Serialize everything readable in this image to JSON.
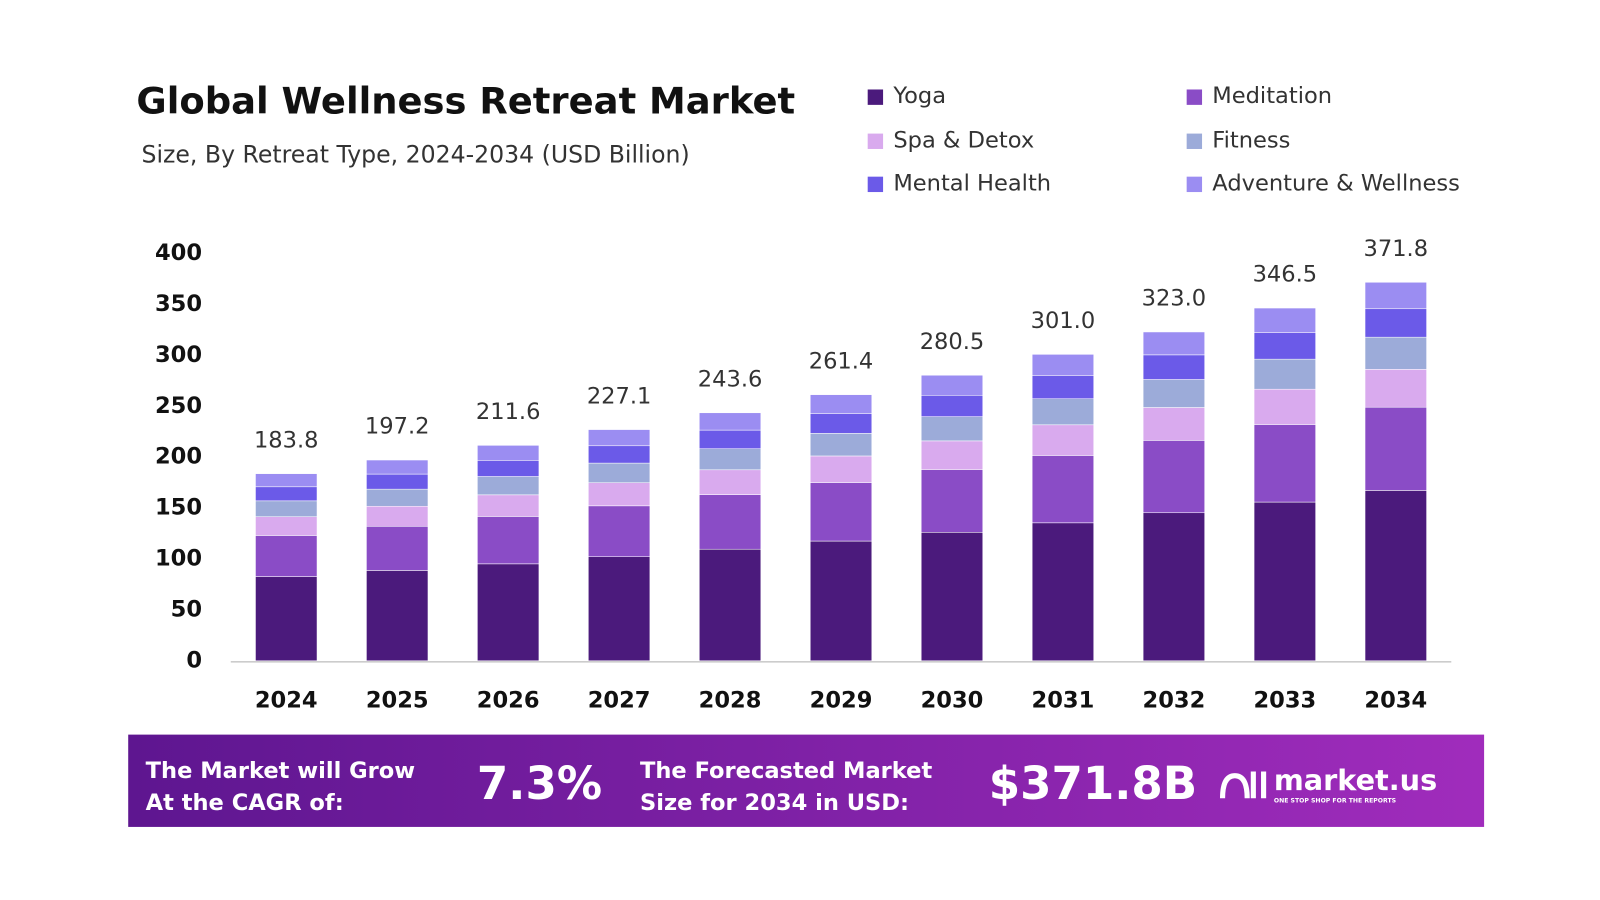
{
  "chart_data": {
    "type": "stacked_bar",
    "title": "Global Wellness Retreat Market",
    "subtitle": "Size, By Retreat Type, 2024-2034 (USD Billion)",
    "categories": [
      "2024",
      "2025",
      "2026",
      "2027",
      "2028",
      "2029",
      "2030",
      "2031",
      "2032",
      "2033",
      "2034"
    ],
    "series": [
      {
        "name": "Yoga",
        "color": "#4b1a7c",
        "values": [
          82.7,
          88.7,
          95.2,
          102.2,
          109.6,
          117.6,
          126.2,
          135.5,
          145.4,
          155.9,
          167.3
        ]
      },
      {
        "name": "Meditation",
        "color": "#8a4cc6",
        "values": [
          40.4,
          43.4,
          46.6,
          50.0,
          53.6,
          57.5,
          61.7,
          66.2,
          71.1,
          76.2,
          81.8
        ]
      },
      {
        "name": "Spa & Detox",
        "color": "#d9aaee",
        "values": [
          18.4,
          19.7,
          21.2,
          22.7,
          24.4,
          26.1,
          28.1,
          30.1,
          32.3,
          34.7,
          37.2
        ]
      },
      {
        "name": "Fitness",
        "color": "#9cabd9",
        "values": [
          15.6,
          16.8,
          18.0,
          19.3,
          20.7,
          22.2,
          23.8,
          25.6,
          27.5,
          29.5,
          31.6
        ]
      },
      {
        "name": "Mental Health",
        "color": "#6b5ae8",
        "values": [
          13.8,
          14.8,
          15.9,
          17.0,
          18.3,
          19.6,
          21.0,
          22.6,
          24.2,
          26.0,
          27.9
        ]
      },
      {
        "name": "Adventure & Wellness",
        "color": "#9b8df2",
        "values": [
          12.9,
          13.8,
          14.7,
          15.9,
          17.0,
          18.4,
          19.7,
          21.0,
          22.5,
          24.2,
          26.0
        ]
      }
    ],
    "totals": [
      183.8,
      197.2,
      211.6,
      227.1,
      243.6,
      261.4,
      280.5,
      301.0,
      323.0,
      346.5,
      371.8
    ],
    "total_labels": [
      "183.8",
      "197.2",
      "211.6",
      "227.1",
      "243.6",
      "261.4",
      "280.5",
      "301.0",
      "323.0",
      "346.5",
      "371.8"
    ],
    "ylim": [
      0,
      400
    ],
    "yticks": [
      0,
      50,
      100,
      150,
      200,
      250,
      300,
      350,
      400
    ],
    "grid": false
  },
  "footer": {
    "cagr_text": [
      "The Market will Grow",
      "At the CAGR of:"
    ],
    "cagr_value": "7.3%",
    "forecast_text": [
      "The Forecasted Market",
      "Size for 2034 in USD:"
    ],
    "forecast_value": "$371.8B",
    "brand": "market.us",
    "tagline": "ONE STOP SHOP FOR THE REPORTS"
  }
}
